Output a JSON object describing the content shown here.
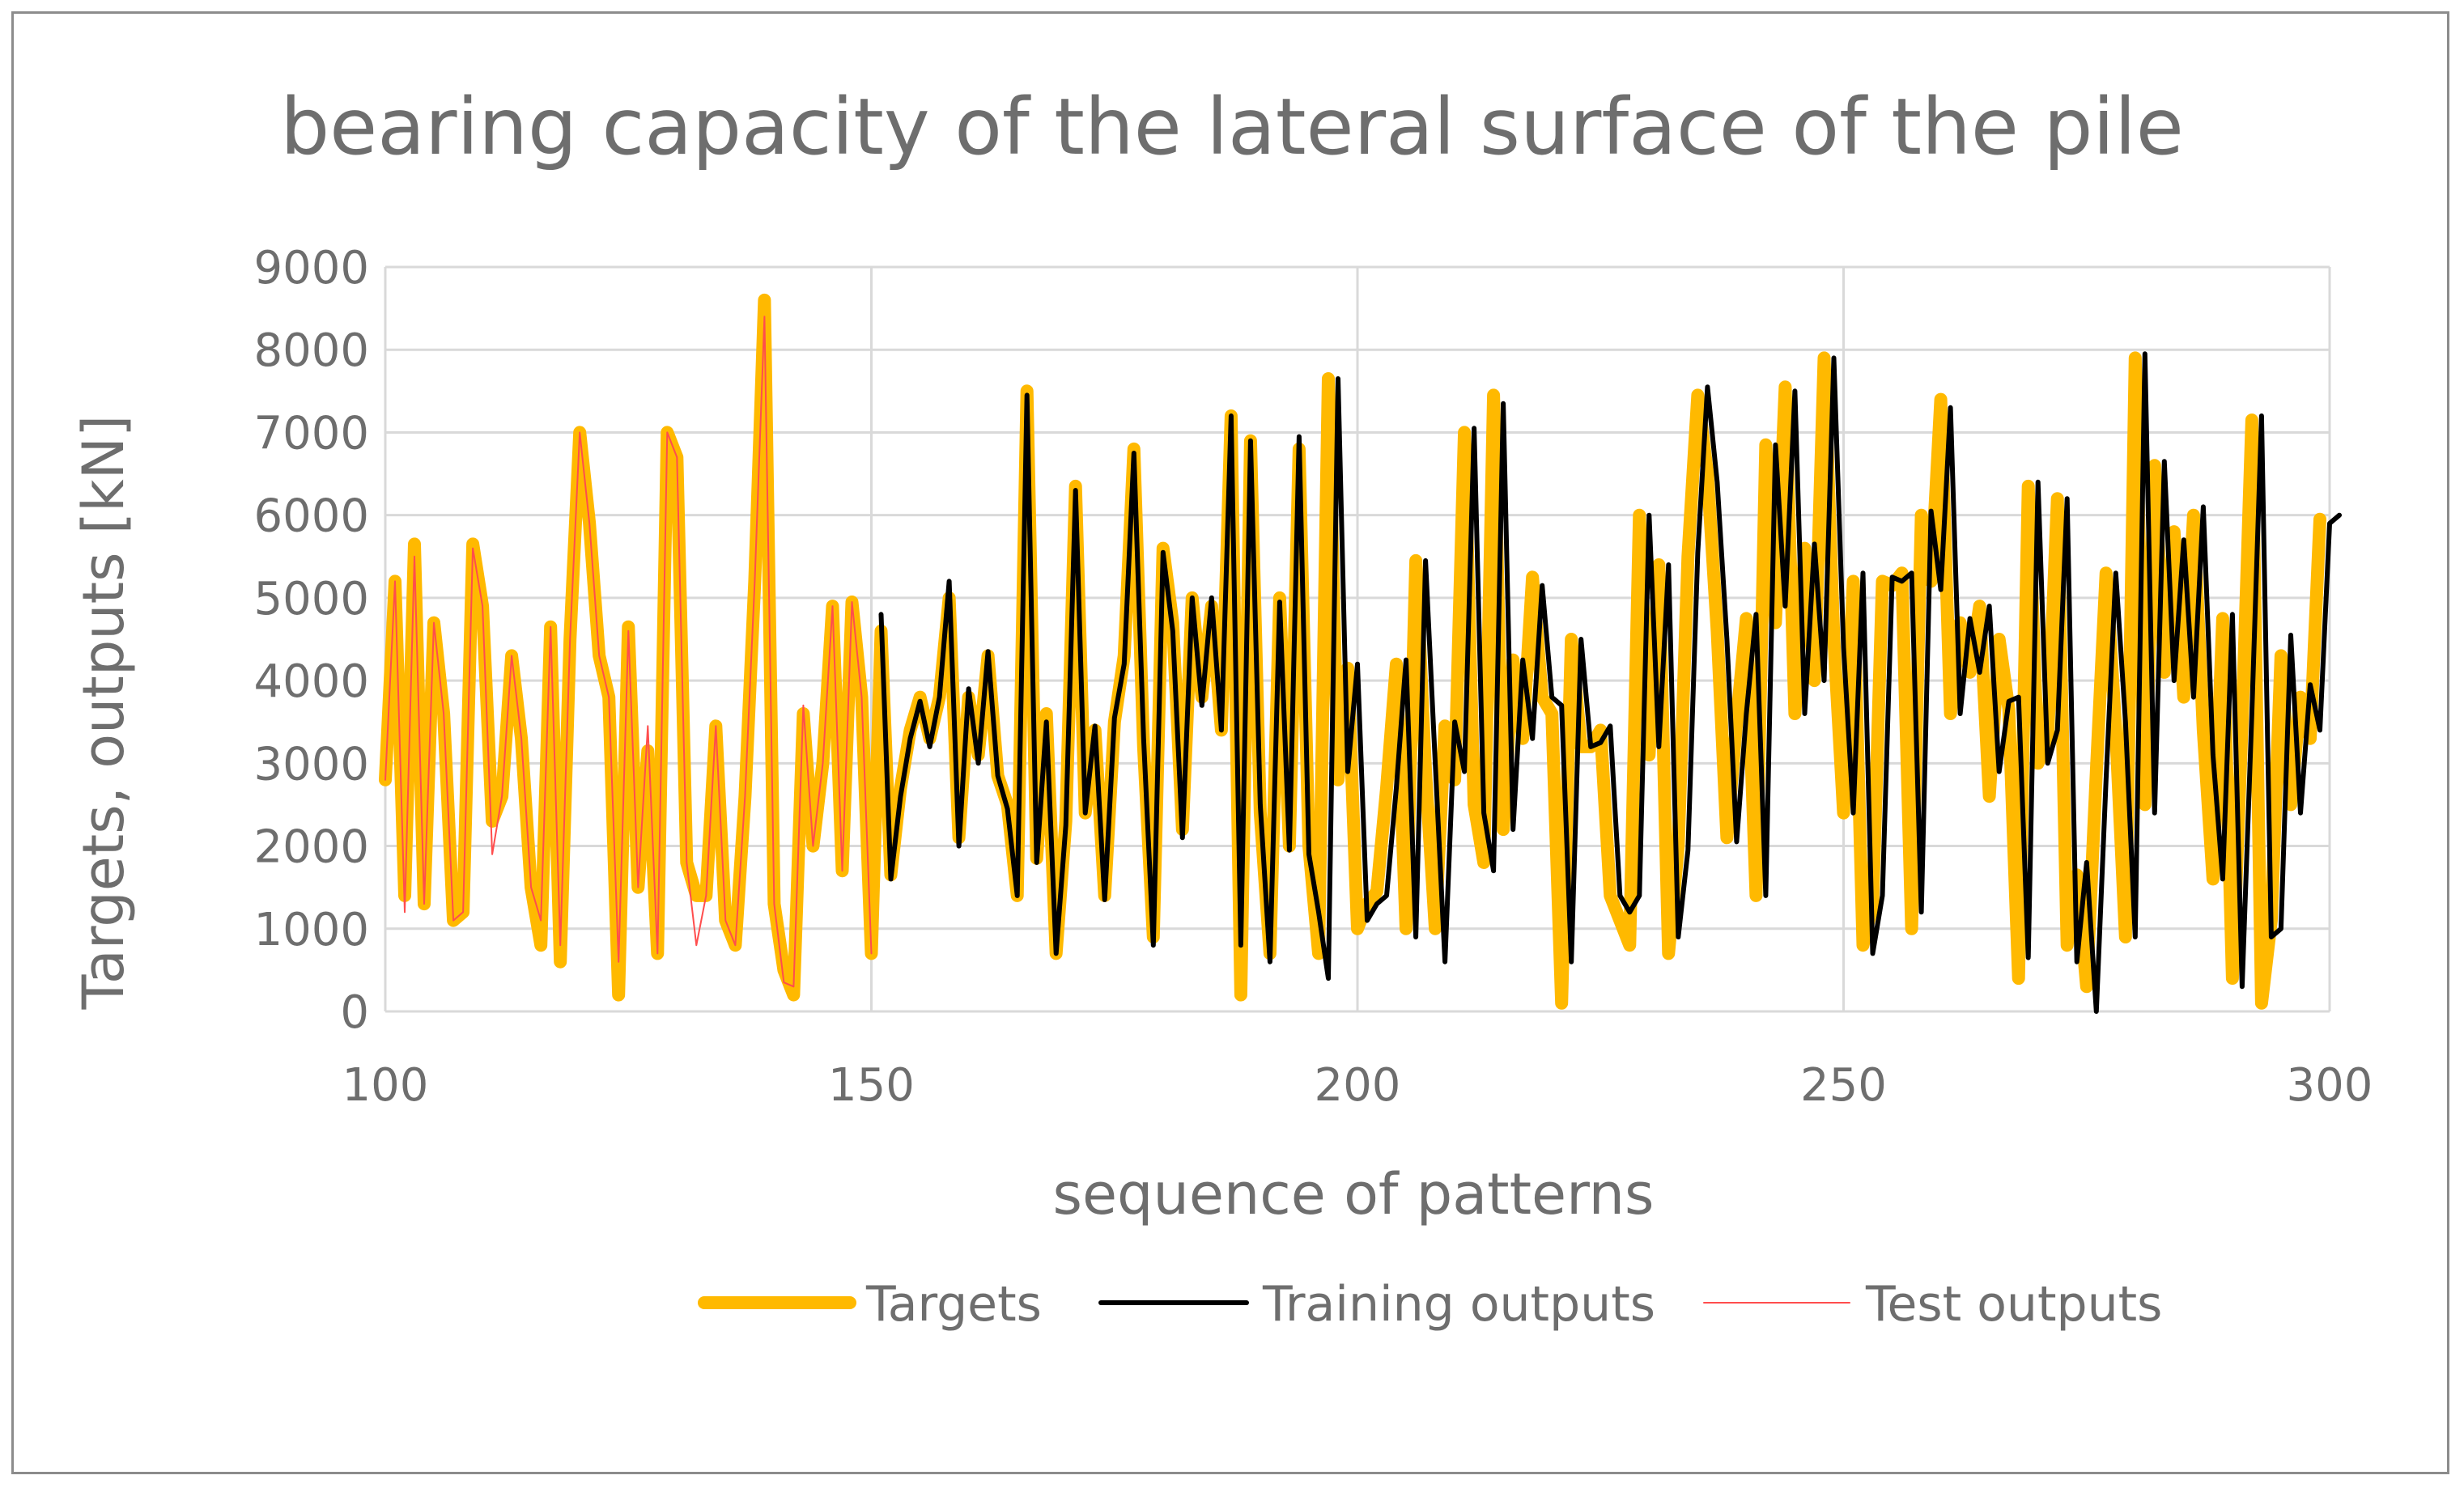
{
  "chart_data": {
    "type": "line",
    "title": "bearing capacity of the lateral surface of the pile",
    "xlabel": "sequence of patterns",
    "ylabel": "Targets, outputs [kN]",
    "xlim": [
      100,
      300
    ],
    "ylim": [
      0,
      9000
    ],
    "x_ticks": [
      "100",
      "150",
      "200",
      "250",
      "300"
    ],
    "y_ticks": [
      "0",
      "1000",
      "2000",
      "3000",
      "4000",
      "5000",
      "6000",
      "7000",
      "8000",
      "9000"
    ],
    "grid": true,
    "legend_position": "bottom",
    "series": [
      {
        "name": "Targets",
        "color": "#FFB900",
        "x_start": 100,
        "values": [
          2800,
          5200,
          1400,
          5650,
          1300,
          4700,
          3600,
          1100,
          1200,
          5650,
          4900,
          2300,
          2600,
          4300,
          3300,
          1500,
          800,
          4650,
          600,
          4500,
          7000,
          5900,
          4300,
          3800,
          200,
          4650,
          1500,
          3150,
          700,
          7000,
          6700,
          1800,
          1400,
          1400,
          3450,
          1100,
          800,
          2600,
          5200,
          8600,
          1300,
          500,
          200,
          3600,
          2000,
          3000,
          4900,
          1700,
          4950,
          3800,
          700,
          4600,
          1650,
          2700,
          3400,
          3800,
          3300,
          3800,
          5000,
          2100,
          3800,
          3100,
          4300,
          2850,
          2500,
          1400,
          7500,
          1850,
          3600,
          700,
          2300,
          6350,
          2400,
          3400,
          1400,
          3500,
          4300,
          6800,
          3200,
          900,
          5600,
          4700,
          2200,
          5000,
          3800,
          4900,
          3400,
          7200,
          200,
          6900,
          2400,
          700,
          5000,
          2000,
          6800,
          2000,
          700,
          7650,
          2800,
          4150,
          1000,
          1300,
          1450,
          2700,
          4200,
          1000,
          5450,
          2900,
          1000,
          3450,
          2800,
          7000,
          2500,
          1800,
          7450,
          2200,
          4250,
          3300,
          5250,
          3800,
          3600,
          100,
          4500,
          3200,
          3200,
          3400,
          1400,
          1100,
          800,
          6000,
          3100,
          5400,
          700,
          2000,
          5500,
          7450,
          6500,
          4600,
          2100,
          3500,
          4750,
          1400,
          6850,
          4700,
          7550,
          3600,
          5600,
          4000,
          7900,
          4500,
          2400,
          5200,
          800,
          1300,
          5200,
          5150,
          5300,
          1000,
          6000,
          5200,
          7400,
          3600,
          4700,
          4100,
          4900,
          2600,
          4500,
          3650,
          400,
          6350,
          3000,
          3300,
          6200,
          800,
          1650,
          300,
          2900,
          5300,
          3400,
          900,
          7900,
          2500,
          6600,
          4100,
          5800,
          3800,
          6000,
          3400,
          1600,
          4750,
          400,
          3500,
          7150,
          100,
          1100,
          4300,
          2500,
          3800,
          3300,
          5950
        ]
      },
      {
        "name": "Training outputs",
        "color": "#000000",
        "x_start": 151,
        "values": [
          4800,
          1600,
          2600,
          3300,
          3750,
          3200,
          3800,
          5200,
          2000,
          3900,
          3000,
          4350,
          2850,
          2450,
          1400,
          7450,
          1800,
          3500,
          700,
          2250,
          6300,
          2400,
          3450,
          1350,
          3550,
          4200,
          6750,
          3300,
          800,
          5550,
          4600,
          2100,
          5000,
          3700,
          5000,
          3400,
          7200,
          800,
          6900,
          2500,
          600,
          4950,
          1950,
          6950,
          1900,
          1200,
          400,
          7650,
          2900,
          4200,
          1100,
          1300,
          1400,
          2700,
          4250,
          900,
          5450,
          3000,
          600,
          3500,
          2900,
          7050,
          2400,
          1700,
          7350,
          2200,
          4250,
          3300,
          5150,
          3800,
          3700,
          600,
          4500,
          3200,
          3250,
          3450,
          1400,
          1200,
          1400,
          6000,
          3200,
          5400,
          900,
          1950,
          5550,
          7550,
          6400,
          4500,
          2050,
          3600,
          4800,
          1400,
          6850,
          4900,
          7500,
          3600,
          5650,
          4000,
          7900,
          4400,
          2400,
          5300,
          700,
          1400,
          5250,
          5200,
          5300,
          1200,
          6050,
          5100,
          7300,
          3600,
          4750,
          4100,
          4900,
          2900,
          3750,
          3800,
          650,
          6400,
          3000,
          3400,
          6200,
          600,
          1800,
          0,
          2800,
          5300,
          3500,
          900,
          7950,
          2400,
          6650,
          4000,
          5700,
          3800,
          6100,
          3100,
          1600,
          4800,
          300,
          3600,
          7200,
          900,
          1000,
          4550,
          2400,
          3950,
          3400,
          5900,
          6000
        ]
      },
      {
        "name": "Test outputs",
        "color": "#FF4D4D",
        "x_start": 100,
        "values": [
          2800,
          5200,
          1200,
          5500,
          1300,
          4700,
          3600,
          1100,
          1200,
          5600,
          4900,
          1900,
          2600,
          4300,
          3300,
          1500,
          1100,
          4650,
          800,
          4500,
          7000,
          5900,
          4300,
          3800,
          600,
          4600,
          1500,
          3450,
          700,
          7000,
          6700,
          1800,
          800,
          1400,
          3450,
          1100,
          800,
          2600,
          5200,
          8400,
          1300,
          350,
          300,
          3700,
          2000,
          3000,
          4900,
          1700,
          4950,
          3800,
          700
        ]
      }
    ]
  }
}
